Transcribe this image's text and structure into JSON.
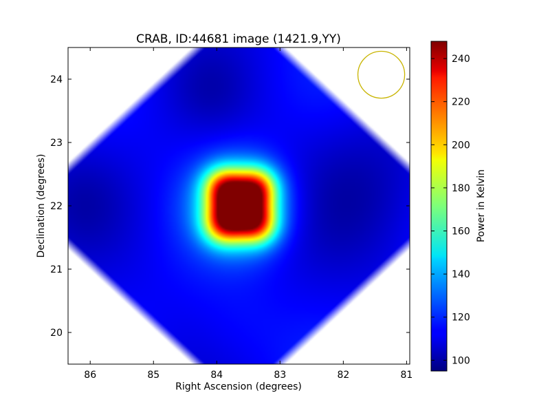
{
  "chart_data": {
    "type": "heatmap",
    "title": "CRAB, ID:44681 image (1421.9,YY)",
    "xlabel": "Right Ascension (degrees)",
    "ylabel": "Declination (degrees)",
    "xlim": [
      86.35,
      80.95
    ],
    "ylim": [
      19.5,
      24.5
    ],
    "x_ticks": [
      86,
      85,
      84,
      83,
      82,
      81
    ],
    "y_ticks": [
      20,
      21,
      22,
      23,
      24
    ],
    "colorbar": {
      "label": "Power in Kelvin",
      "colormap": "jet",
      "range": [
        95,
        248
      ],
      "ticks": [
        100,
        120,
        140,
        160,
        180,
        200,
        220,
        240
      ]
    },
    "background_level": 113,
    "source": {
      "ra": 83.63,
      "dec": 22.0,
      "peak": 248,
      "lobes": [
        {
          "ra": 83.9,
          "dec": 22.3,
          "amp": 60
        },
        {
          "ra": 83.35,
          "dec": 22.3,
          "amp": 60
        },
        {
          "ra": 83.9,
          "dec": 21.7,
          "amp": 60
        },
        {
          "ra": 83.35,
          "dec": 21.7,
          "amp": 60
        }
      ]
    },
    "valid_region": "octagon",
    "beam_circle": {
      "ra": 81.4,
      "dec": 24.07,
      "radius_deg": 0.37,
      "color": "#c8b400"
    }
  }
}
